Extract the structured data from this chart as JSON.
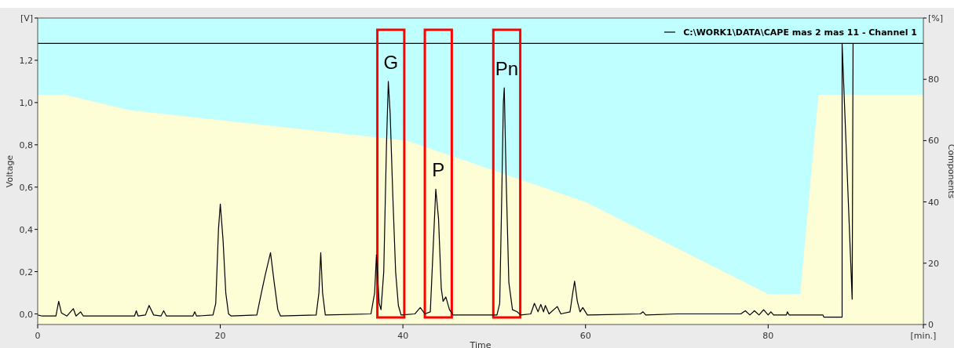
{
  "chart_data": {
    "type": "line",
    "xlabel": "Time",
    "ylabel": "Voltage",
    "y2label": "Components",
    "xlim": [
      0,
      97
    ],
    "xticks": [
      0,
      20,
      40,
      60,
      80,
      {
        "value": 97,
        "label": "[min.]"
      }
    ],
    "ylim": [
      -0.05,
      1.4
    ],
    "yticks": [
      {
        "value": 0,
        "label": "0,0"
      },
      {
        "value": 0.2,
        "label": "0,2"
      },
      {
        "value": 0.4,
        "label": "0,4"
      },
      {
        "value": 0.6,
        "label": "0,6"
      },
      {
        "value": 0.8,
        "label": "0,8"
      },
      {
        "value": 1,
        "label": "1,0"
      },
      {
        "value": 1.2,
        "label": "1,2"
      },
      {
        "value": 1.4,
        "label": "[V]"
      }
    ],
    "y2lim": [
      0,
      100
    ],
    "y2ticks": [
      0,
      20,
      40,
      60,
      80,
      {
        "value": 100,
        "label": "[%]"
      }
    ],
    "stacked": true,
    "grid": false,
    "legend": "top right",
    "series": [
      {
        "type": "area",
        "axis": "y2",
        "color": "#fdfdd6",
        "x": [
          0,
          3,
          10,
          40.5,
          60,
          80,
          83.5,
          85.5,
          97
        ],
        "values": [
          75,
          75,
          70,
          60,
          40,
          10,
          10,
          75,
          75
        ]
      },
      {
        "type": "area",
        "axis": "y2",
        "color": "#c0ffff",
        "x": [
          0,
          3,
          10,
          40.5,
          60,
          80,
          83.5,
          85.5,
          97
        ],
        "values": [
          25,
          25,
          30,
          40,
          60,
          90,
          90,
          25,
          25
        ]
      },
      {
        "name": "C:\\WORK1\\DATA\\CAPE mas 2 mas 11 -  Channel 1",
        "color": "#000000",
        "x": [
          0,
          0.5,
          2.0,
          2.3,
          2.6,
          3.2,
          3.9,
          4.2,
          4.7,
          5.0,
          10.6,
          10.8,
          11.0,
          11.8,
          12.2,
          12.7,
          13.5,
          13.8,
          14.1,
          17.0,
          17.2,
          17.4,
          19.2,
          19.5,
          19.8,
          20.0,
          20.3,
          20.6,
          20.9,
          21.2,
          24.0,
          24.5,
          24.9,
          25.5,
          25.9,
          26.3,
          26.6,
          30.5,
          30.8,
          31.0,
          31.2,
          31.5,
          36.5,
          36.9,
          37.1,
          37.4,
          37.6,
          37.9,
          38.2,
          38.4,
          38.6,
          38.9,
          39.2,
          39.5,
          39.8,
          41.3,
          41.9,
          42.4,
          43.0,
          43.3,
          43.6,
          43.9,
          44.2,
          44.4,
          44.7,
          45.1,
          45.5,
          50.3,
          50.6,
          50.8,
          51.0,
          51.1,
          51.3,
          51.6,
          52.0,
          52.5,
          52.9,
          54.0,
          54.4,
          54.8,
          55.1,
          55.4,
          55.6,
          56.0,
          56.9,
          57.3,
          58.3,
          58.6,
          58.8,
          59.1,
          59.4,
          59.7,
          60.2,
          66.0,
          66.3,
          66.6,
          70.0,
          77.0,
          77.5,
          78.0,
          78.5,
          79.0,
          79.5,
          80.0,
          80.3,
          80.6,
          82.0,
          82.1,
          82.3,
          86.0,
          86.1,
          88.1,
          88.1,
          89.2,
          89.3
        ],
        "values": [
          -0.005,
          -0.01,
          -0.01,
          0.06,
          0.005,
          -0.01,
          0.025,
          -0.01,
          0.01,
          -0.01,
          -0.01,
          0.015,
          -0.01,
          -0.005,
          0.04,
          -0.005,
          -0.01,
          0.015,
          -0.01,
          -0.01,
          0.01,
          -0.01,
          -0.005,
          0.05,
          0.4,
          0.52,
          0.35,
          0.1,
          0.0,
          -0.01,
          -0.005,
          0.1,
          0.18,
          0.29,
          0.15,
          0.02,
          -0.01,
          -0.005,
          0.1,
          0.29,
          0.1,
          -0.005,
          0.0,
          0.1,
          0.28,
          0.05,
          0.02,
          0.2,
          0.8,
          1.1,
          0.95,
          0.55,
          0.2,
          0.04,
          -0.005,
          0.0,
          0.03,
          0.0,
          0.01,
          0.3,
          0.59,
          0.45,
          0.12,
          0.06,
          0.08,
          0.02,
          -0.005,
          -0.005,
          0.05,
          0.5,
          1.0,
          1.07,
          0.65,
          0.15,
          0.02,
          0.01,
          -0.005,
          0.0,
          0.05,
          0.01,
          0.045,
          0.01,
          0.04,
          0.0,
          0.035,
          0.0,
          0.01,
          0.1,
          0.155,
          0.06,
          0.01,
          0.03,
          -0.005,
          0.0,
          0.01,
          -0.005,
          0.0,
          0.0,
          0.015,
          -0.005,
          0.015,
          -0.005,
          0.02,
          -0.005,
          0.01,
          -0.005,
          -0.005,
          0.01,
          -0.005,
          -0.005,
          -0.015,
          -0.015,
          1.28,
          0.07,
          1.28
        ]
      }
    ],
    "ref_lines": [
      {
        "axis": "y",
        "value": 1.28,
        "color": "#000000"
      }
    ],
    "annotations": [
      {
        "text": "G",
        "x": 38.4,
        "y": 1.1
      },
      {
        "text": "P",
        "x": 43.6,
        "y": 0.59
      },
      {
        "text": "Pn",
        "x": 51.1,
        "y": 1.07
      }
    ]
  }
}
